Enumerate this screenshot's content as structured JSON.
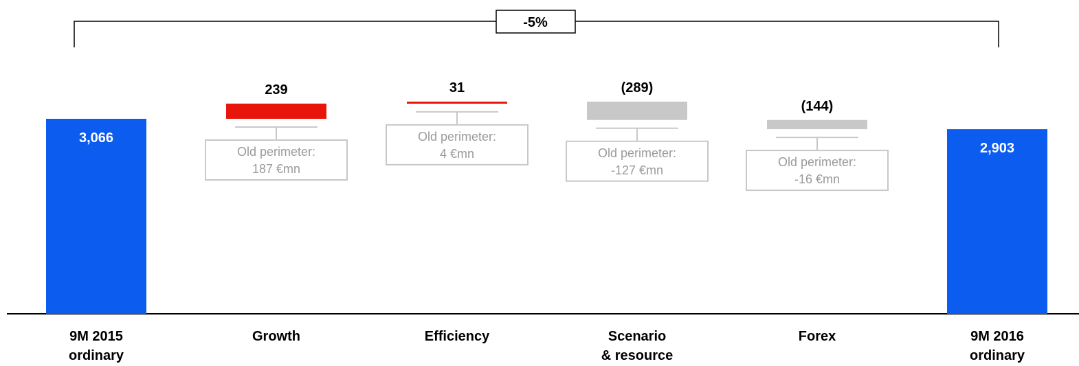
{
  "chart_data": {
    "type": "waterfall",
    "categories": [
      "9M 2015\nordinary",
      "Growth",
      "Efficiency",
      "Scenario\n& resource",
      "Forex",
      "9M 2016\nordinary"
    ],
    "values": [
      3066,
      239,
      31,
      -289,
      -144,
      2903
    ],
    "value_labels": [
      "3,066",
      "239",
      "31",
      "(289)",
      "(144)",
      "2,903"
    ],
    "kinds": [
      "total",
      "delta",
      "delta",
      "delta",
      "delta",
      "total"
    ],
    "notes": [
      null,
      [
        "Old perimeter:",
        "187 €mn"
      ],
      [
        "Old perimeter:",
        "4 €mn"
      ],
      [
        "Old perimeter:",
        "-127 €mn"
      ],
      [
        "Old perimeter:",
        "-16 €mn"
      ],
      null
    ],
    "change_label": "-5%",
    "colors": {
      "total": "#0d5cf0",
      "increase": "#e8150a",
      "decrease": "#c8c8c8",
      "note_border": "#c8c8c8",
      "note_text": "#9a9a9a",
      "axis": "#000000"
    }
  }
}
